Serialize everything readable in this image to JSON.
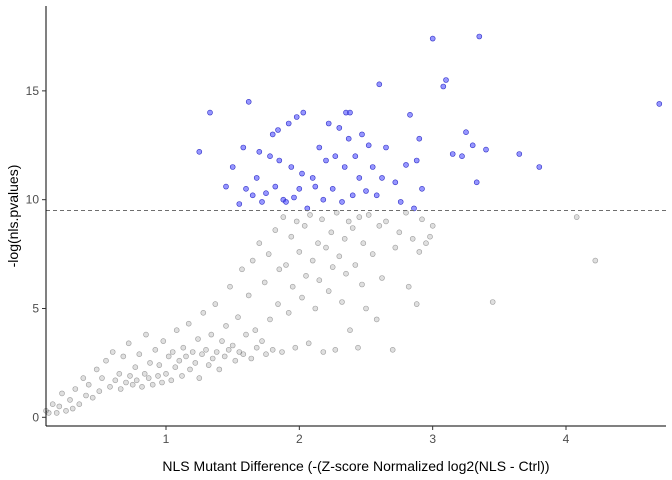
{
  "chart_data": {
    "type": "scatter",
    "title": "",
    "xlabel": "NLS Mutant Difference (-(Z-score Normalized log2(NLS - Ctrl))",
    "ylabel": "-log(nls.pvalues)",
    "xlim": [
      0.1,
      4.75
    ],
    "ylim": [
      -0.4,
      18.9
    ],
    "x_ticks": [
      1,
      2,
      3,
      4
    ],
    "y_ticks": [
      0,
      5,
      10,
      15
    ],
    "x_tick_labels": [
      "1",
      "2",
      "3",
      "4"
    ],
    "y_tick_labels": [
      "0",
      "5",
      "10",
      "15"
    ],
    "threshold": {
      "y": 9.5,
      "style": "dashed",
      "color": "#6e6e6e"
    },
    "grid": false,
    "legend": "none",
    "colors": {
      "significant": "#3f3fff",
      "not_significant": "#808080"
    },
    "series": [
      {
        "color": "#3f3fff",
        "points": [
          [
            1.25,
            12.2
          ],
          [
            1.33,
            14.0
          ],
          [
            1.45,
            10.6
          ],
          [
            1.5,
            11.5
          ],
          [
            1.55,
            9.8
          ],
          [
            1.58,
            12.4
          ],
          [
            1.6,
            10.5
          ],
          [
            1.62,
            14.5
          ],
          [
            1.65,
            10.2
          ],
          [
            1.68,
            11.0
          ],
          [
            1.7,
            12.2
          ],
          [
            1.72,
            9.9
          ],
          [
            1.75,
            10.3
          ],
          [
            1.78,
            12.0
          ],
          [
            1.8,
            13.0
          ],
          [
            1.82,
            10.6
          ],
          [
            1.84,
            13.2
          ],
          [
            1.85,
            11.8
          ],
          [
            1.88,
            10.0
          ],
          [
            1.9,
            9.9
          ],
          [
            1.92,
            13.5
          ],
          [
            1.94,
            11.5
          ],
          [
            1.96,
            10.1
          ],
          [
            1.98,
            13.8
          ],
          [
            2.0,
            10.5
          ],
          [
            2.02,
            11.2
          ],
          [
            2.03,
            14.0
          ],
          [
            2.06,
            9.6
          ],
          [
            2.1,
            11.0
          ],
          [
            2.12,
            10.6
          ],
          [
            2.15,
            12.4
          ],
          [
            2.18,
            10.0
          ],
          [
            2.2,
            11.8
          ],
          [
            2.22,
            13.5
          ],
          [
            2.25,
            10.5
          ],
          [
            2.27,
            12.0
          ],
          [
            2.3,
            13.3
          ],
          [
            2.32,
            9.9
          ],
          [
            2.34,
            11.5
          ],
          [
            2.35,
            14.0
          ],
          [
            2.37,
            12.8
          ],
          [
            2.38,
            14.0
          ],
          [
            2.4,
            10.2
          ],
          [
            2.42,
            12.0
          ],
          [
            2.45,
            11.0
          ],
          [
            2.47,
            13.0
          ],
          [
            2.5,
            10.4
          ],
          [
            2.52,
            12.5
          ],
          [
            2.55,
            11.5
          ],
          [
            2.58,
            10.2
          ],
          [
            2.6,
            15.3
          ],
          [
            2.62,
            11.0
          ],
          [
            2.65,
            12.4
          ],
          [
            2.72,
            10.8
          ],
          [
            2.76,
            9.9
          ],
          [
            2.8,
            11.6
          ],
          [
            2.83,
            13.9
          ],
          [
            2.86,
            9.6
          ],
          [
            2.88,
            11.8
          ],
          [
            2.9,
            12.8
          ],
          [
            2.92,
            10.5
          ],
          [
            3.0,
            17.4
          ],
          [
            3.08,
            15.2
          ],
          [
            3.1,
            15.5
          ],
          [
            3.15,
            12.1
          ],
          [
            3.22,
            12.0
          ],
          [
            3.25,
            13.1
          ],
          [
            3.3,
            12.5
          ],
          [
            3.33,
            10.8
          ],
          [
            3.35,
            17.5
          ],
          [
            3.4,
            12.3
          ],
          [
            3.65,
            12.1
          ],
          [
            3.8,
            11.5
          ],
          [
            4.7,
            14.4
          ]
        ]
      },
      {
        "color": "#808080",
        "points": [
          [
            0.1,
            0.3
          ],
          [
            0.12,
            0.2
          ],
          [
            0.15,
            0.6
          ],
          [
            0.18,
            0.2
          ],
          [
            0.2,
            0.5
          ],
          [
            0.22,
            1.1
          ],
          [
            0.25,
            0.3
          ],
          [
            0.28,
            0.8
          ],
          [
            0.3,
            0.4
          ],
          [
            0.32,
            1.3
          ],
          [
            0.35,
            0.6
          ],
          [
            0.38,
            1.8
          ],
          [
            0.4,
            1.0
          ],
          [
            0.42,
            1.5
          ],
          [
            0.45,
            0.9
          ],
          [
            0.48,
            2.2
          ],
          [
            0.5,
            1.2
          ],
          [
            0.52,
            1.8
          ],
          [
            0.55,
            2.6
          ],
          [
            0.58,
            1.4
          ],
          [
            0.6,
            3.0
          ],
          [
            0.62,
            1.7
          ],
          [
            0.65,
            2.0
          ],
          [
            0.66,
            1.3
          ],
          [
            0.68,
            2.8
          ],
          [
            0.7,
            1.6
          ],
          [
            0.72,
            3.4
          ],
          [
            0.73,
            1.9
          ],
          [
            0.75,
            1.5
          ],
          [
            0.77,
            2.3
          ],
          [
            0.78,
            1.7
          ],
          [
            0.8,
            2.9
          ],
          [
            0.82,
            1.4
          ],
          [
            0.84,
            2.0
          ],
          [
            0.85,
            3.8
          ],
          [
            0.87,
            1.8
          ],
          [
            0.88,
            2.5
          ],
          [
            0.9,
            1.5
          ],
          [
            0.92,
            3.1
          ],
          [
            0.94,
            1.9
          ],
          [
            0.95,
            2.4
          ],
          [
            0.97,
            1.6
          ],
          [
            0.98,
            3.5
          ],
          [
            1.0,
            2.0
          ],
          [
            1.02,
            2.8
          ],
          [
            1.04,
            1.7
          ],
          [
            1.05,
            3.0
          ],
          [
            1.07,
            2.3
          ],
          [
            1.08,
            4.0
          ],
          [
            1.1,
            2.6
          ],
          [
            1.12,
            1.9
          ],
          [
            1.13,
            3.2
          ],
          [
            1.15,
            2.8
          ],
          [
            1.17,
            4.3
          ],
          [
            1.18,
            2.2
          ],
          [
            1.2,
            3.0
          ],
          [
            1.22,
            2.5
          ],
          [
            1.24,
            3.6
          ],
          [
            1.25,
            1.8
          ],
          [
            1.27,
            2.9
          ],
          [
            1.28,
            4.8
          ],
          [
            1.3,
            3.1
          ],
          [
            1.32,
            2.4
          ],
          [
            1.34,
            3.8
          ],
          [
            1.35,
            2.7
          ],
          [
            1.37,
            5.2
          ],
          [
            1.38,
            3.0
          ],
          [
            1.4,
            2.2
          ],
          [
            1.42,
            3.5
          ],
          [
            1.44,
            2.8
          ],
          [
            1.45,
            4.2
          ],
          [
            1.47,
            3.1
          ],
          [
            1.48,
            6.0
          ],
          [
            1.5,
            3.3
          ],
          [
            1.52,
            2.6
          ],
          [
            1.54,
            4.6
          ],
          [
            1.55,
            3.0
          ],
          [
            1.57,
            6.8
          ],
          [
            1.58,
            2.9
          ],
          [
            1.6,
            3.8
          ],
          [
            1.62,
            5.6
          ],
          [
            1.64,
            2.7
          ],
          [
            1.65,
            7.2
          ],
          [
            1.67,
            4.0
          ],
          [
            1.68,
            3.2
          ],
          [
            1.7,
            8.0
          ],
          [
            1.72,
            3.5
          ],
          [
            1.74,
            6.2
          ],
          [
            1.75,
            2.9
          ],
          [
            1.77,
            7.5
          ],
          [
            1.78,
            4.5
          ],
          [
            1.8,
            3.1
          ],
          [
            1.82,
            8.6
          ],
          [
            1.84,
            5.2
          ],
          [
            1.85,
            6.8
          ],
          [
            1.87,
            3.0
          ],
          [
            1.88,
            9.2
          ],
          [
            1.9,
            7.0
          ],
          [
            1.92,
            4.8
          ],
          [
            1.94,
            8.3
          ],
          [
            1.95,
            6.0
          ],
          [
            1.97,
            3.2
          ],
          [
            1.98,
            9.0
          ],
          [
            2.0,
            7.6
          ],
          [
            2.02,
            5.5
          ],
          [
            2.04,
            8.8
          ],
          [
            2.05,
            6.5
          ],
          [
            2.07,
            3.4
          ],
          [
            2.08,
            9.3
          ],
          [
            2.1,
            7.2
          ],
          [
            2.12,
            5.0
          ],
          [
            2.14,
            8.0
          ],
          [
            2.15,
            6.3
          ],
          [
            2.17,
            9.1
          ],
          [
            2.18,
            3.0
          ],
          [
            2.2,
            7.8
          ],
          [
            2.22,
            5.8
          ],
          [
            2.24,
            8.5
          ],
          [
            2.25,
            6.9
          ],
          [
            2.27,
            3.1
          ],
          [
            2.28,
            9.4
          ],
          [
            2.3,
            7.4
          ],
          [
            2.32,
            5.3
          ],
          [
            2.34,
            8.2
          ],
          [
            2.35,
            6.6
          ],
          [
            2.37,
            9.0
          ],
          [
            2.38,
            4.0
          ],
          [
            2.4,
            8.7
          ],
          [
            2.42,
            7.0
          ],
          [
            2.44,
            3.2
          ],
          [
            2.45,
            9.2
          ],
          [
            2.47,
            6.1
          ],
          [
            2.48,
            8.0
          ],
          [
            2.5,
            5.0
          ],
          [
            2.52,
            9.3
          ],
          [
            2.55,
            7.5
          ],
          [
            2.58,
            4.5
          ],
          [
            2.6,
            8.8
          ],
          [
            2.62,
            6.4
          ],
          [
            2.65,
            9.0
          ],
          [
            2.7,
            3.1
          ],
          [
            2.72,
            7.8
          ],
          [
            2.75,
            8.5
          ],
          [
            2.8,
            9.4
          ],
          [
            2.82,
            6.0
          ],
          [
            2.85,
            8.2
          ],
          [
            2.88,
            5.2
          ],
          [
            2.9,
            7.6
          ],
          [
            2.92,
            9.1
          ],
          [
            2.95,
            8.0
          ],
          [
            2.98,
            8.3
          ],
          [
            3.0,
            8.8
          ],
          [
            3.45,
            5.3
          ],
          [
            4.08,
            9.2
          ],
          [
            4.22,
            7.2
          ]
        ]
      }
    ]
  }
}
